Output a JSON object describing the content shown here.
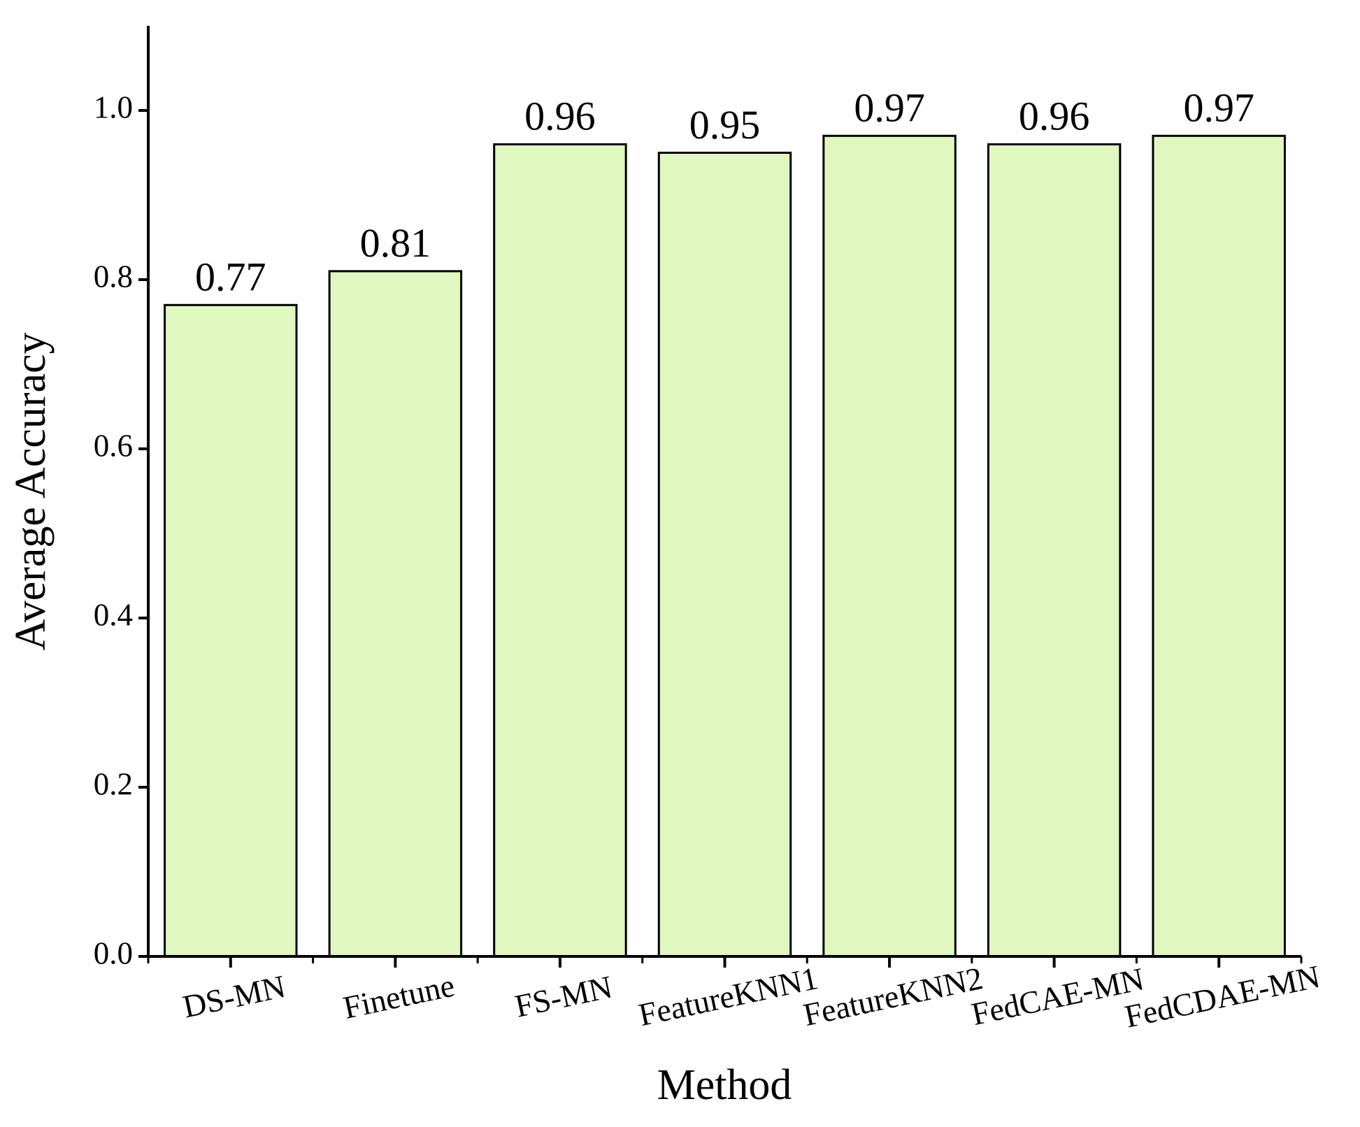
{
  "chart_data": {
    "type": "bar",
    "x_label": "Method",
    "y_label": "Average Accuracy",
    "categories": [
      "DS-MN",
      "Finetune",
      "FS-MN",
      "FeatureKNN1",
      "FeatureKNN2",
      "FedCAE-MN",
      "FedCDAE-MN"
    ],
    "values": [
      0.77,
      0.81,
      0.96,
      0.95,
      0.97,
      0.96,
      0.97
    ],
    "color": "#e0f8c0",
    "ylim": [
      0,
      1.1
    ],
    "yticks": [
      {
        "value": 0,
        "label": "0.0"
      },
      0.2,
      0.4,
      0.6,
      0.8,
      {
        "value": 1,
        "label": "1.0"
      }
    ],
    "grid": false
  }
}
